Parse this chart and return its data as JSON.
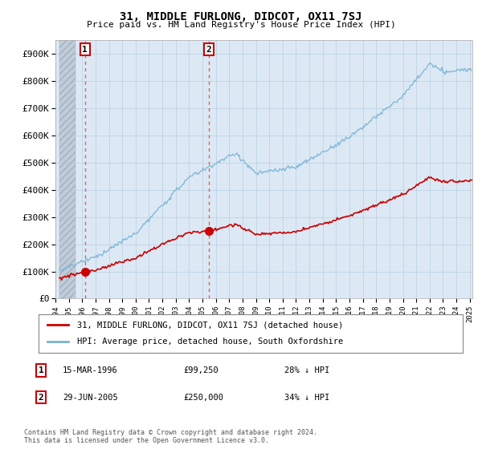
{
  "title": "31, MIDDLE FURLONG, DIDCOT, OX11 7SJ",
  "subtitle": "Price paid vs. HM Land Registry's House Price Index (HPI)",
  "hpi_color": "#7ab3d4",
  "price_color": "#cc0000",
  "marker_color": "#cc0000",
  "sale1_x": 1996.21,
  "sale1_y": 99250,
  "sale1_label": "1",
  "sale1_date": "15-MAR-1996",
  "sale1_price": "£99,250",
  "sale1_hpi": "28% ↓ HPI",
  "sale2_x": 2005.49,
  "sale2_y": 250000,
  "sale2_label": "2",
  "sale2_date": "29-JUN-2005",
  "sale2_price": "£250,000",
  "sale2_hpi": "34% ↓ HPI",
  "legend_line1": "31, MIDDLE FURLONG, DIDCOT, OX11 7SJ (detached house)",
  "legend_line2": "HPI: Average price, detached house, South Oxfordshire",
  "footnote": "Contains HM Land Registry data © Crown copyright and database right 2024.\nThis data is licensed under the Open Government Licence v3.0.",
  "plot_bg_color": "#dce9f5",
  "grid_color": "#b8cfe0",
  "hatch_color": "#c0ccd8",
  "xlim_left": 1994.3,
  "xlim_right": 2025.2,
  "ylim": [
    0,
    950000
  ],
  "yticks": [
    0,
    100000,
    200000,
    300000,
    400000,
    500000,
    600000,
    700000,
    800000,
    900000
  ],
  "ytick_labels": [
    "£0",
    "£100K",
    "£200K",
    "£300K",
    "£400K",
    "£500K",
    "£600K",
    "£700K",
    "£800K",
    "£900K"
  ],
  "hatch_end": 1995.5
}
